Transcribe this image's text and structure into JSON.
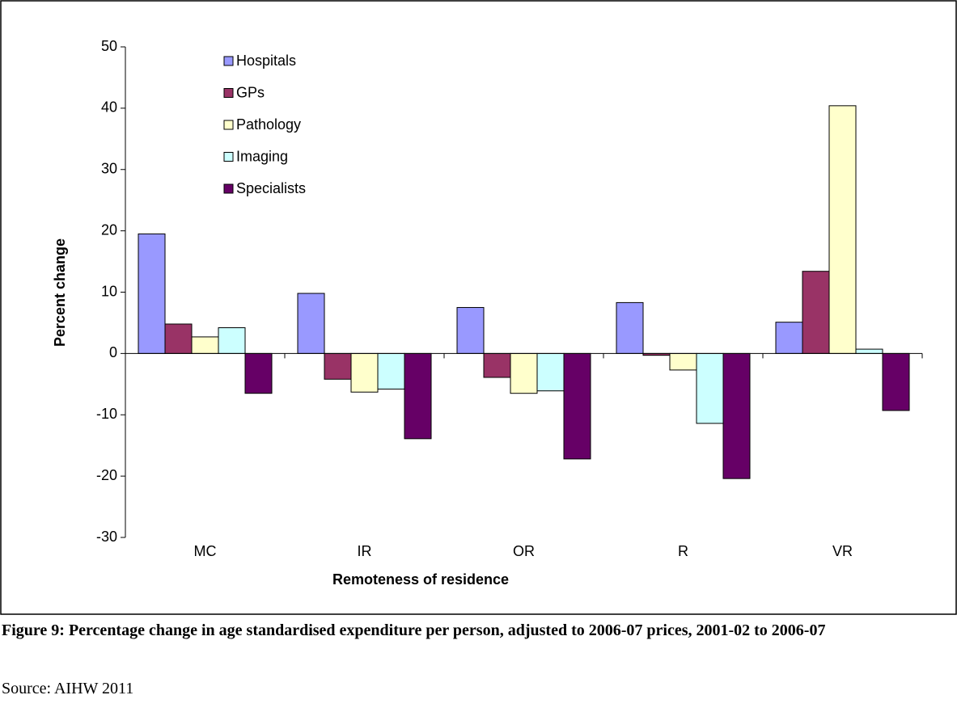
{
  "chart_data": {
    "type": "bar",
    "y_label": "Percent change",
    "x_label": "Remoteness of residence",
    "caption": "Figure 9: Percentage change in age standardised expenditure per person, adjusted to 2006-07 prices, 2001-02 to 2006-07",
    "source": "Source: AIHW 2011",
    "categories": [
      "MC",
      "IR",
      "OR",
      "R",
      "VR"
    ],
    "series": [
      {
        "name": "Hospitals",
        "color": "#9999ff",
        "values": [
          19.5,
          9.8,
          7.5,
          8.3,
          5.1
        ]
      },
      {
        "name": "GPs",
        "color": "#993366",
        "values": [
          4.8,
          -4.2,
          -3.9,
          -0.3,
          13.4
        ]
      },
      {
        "name": "Pathology",
        "color": "#ffffcc",
        "values": [
          2.7,
          -6.3,
          -6.5,
          -2.7,
          40.4
        ]
      },
      {
        "name": "Imaging",
        "color": "#ccffff",
        "values": [
          4.2,
          -5.8,
          -6.1,
          -11.4,
          0.7
        ]
      },
      {
        "name": "Specialists",
        "color": "#660066",
        "values": [
          -6.5,
          -13.9,
          -17.2,
          -20.4,
          -9.3
        ]
      }
    ],
    "ylim": [
      -30,
      50
    ],
    "yticks": [
      -30,
      -20,
      -10,
      0,
      10,
      20,
      30,
      40,
      50
    ],
    "grid": false
  }
}
